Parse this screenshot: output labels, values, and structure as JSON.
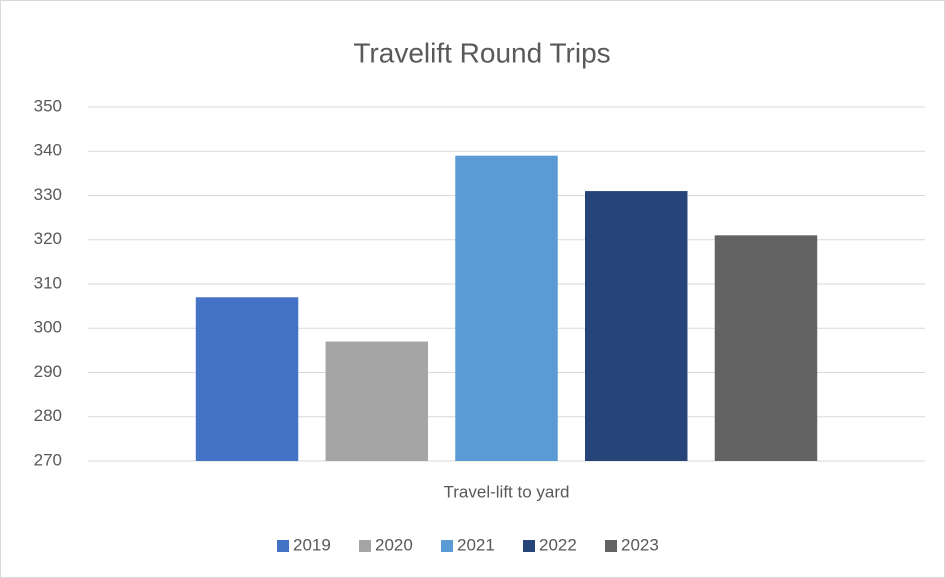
{
  "chart_data": {
    "type": "bar",
    "title": "Travelift Round Trips",
    "categories": [
      "Travel-lift to yard"
    ],
    "series": [
      {
        "name": "2019",
        "color": "#4472c4",
        "values": [
          307
        ]
      },
      {
        "name": "2020",
        "color": "#a5a5a5",
        "values": [
          297
        ]
      },
      {
        "name": "2021",
        "color": "#5b9bd5",
        "values": [
          339
        ]
      },
      {
        "name": "2022",
        "color": "#264478",
        "values": [
          331
        ]
      },
      {
        "name": "2023",
        "color": "#636363",
        "values": [
          321
        ]
      }
    ],
    "ylim": [
      270,
      350
    ],
    "yticks": [
      270,
      280,
      290,
      300,
      310,
      320,
      330,
      340,
      350
    ],
    "grid": true,
    "legend": "bottom"
  }
}
